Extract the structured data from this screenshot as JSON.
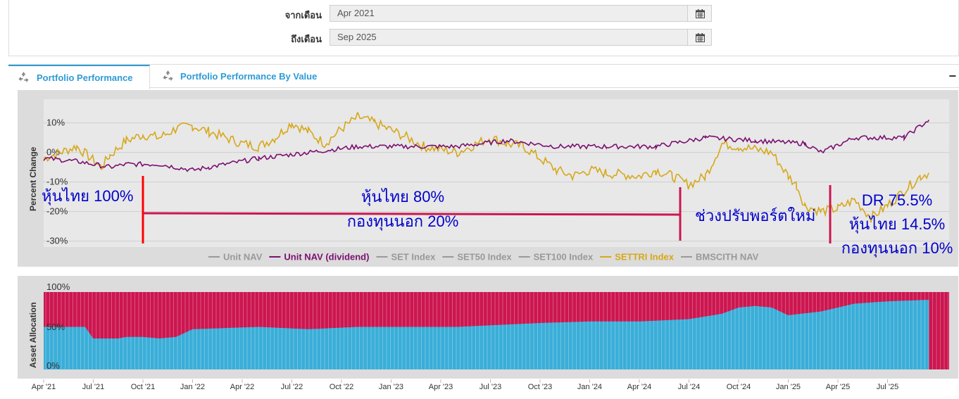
{
  "filters": {
    "from_label": "จากเดือน",
    "from_value": "Apr 2021",
    "to_label": "ถึงเดือน",
    "to_value": "Sep 2025",
    "calendar_icon": "calendar-icon"
  },
  "tabs": [
    {
      "label": "Portfolio Performance",
      "icon": "recycle-icon",
      "active": true
    },
    {
      "label": "Portfolio Performance By Value",
      "icon": "recycle-icon",
      "active": false
    }
  ],
  "collapse_label": "−",
  "colors": {
    "unit_nav_dividend": "#7b1070",
    "settri": "#d6a81a",
    "inactive_legend": "#999999",
    "alloc_red": "#cc1650",
    "alloc_blue": "#3aaed8",
    "annotation_red": "#cc1650",
    "annotation_blue": "#0000cc"
  },
  "chart_data": [
    {
      "type": "line",
      "ylabel": "Percent Change",
      "ylim": [
        -32,
        18
      ],
      "y_ticks": [
        10,
        0,
        -10,
        -20,
        -30
      ],
      "y_tick_labels": [
        "10%",
        "0%",
        "-10%",
        "-20%",
        "-30%"
      ],
      "x_ticks": [
        "Apr '21",
        "Jul '21",
        "Oct '21",
        "Jan '22",
        "Apr '22",
        "Jul '22",
        "Oct '22",
        "Jan '23",
        "Apr '23",
        "Jul '23",
        "Oct '23",
        "Jan '24",
        "Apr '24",
        "Jul '24",
        "Oct '24",
        "Jan '25",
        "Apr '25",
        "Jul '25"
      ],
      "legend": [
        {
          "name": "Unit NAV",
          "active": false
        },
        {
          "name": "Unit NAV (dividend)",
          "active": true
        },
        {
          "name": "SET Index",
          "active": false
        },
        {
          "name": "SET50 Index",
          "active": false
        },
        {
          "name": "SET100 Index",
          "active": false
        },
        {
          "name": "SETTRI Index",
          "active": true
        },
        {
          "name": "BMSCITH NAV",
          "active": false
        }
      ],
      "legend_placement": "bottom",
      "series": [
        {
          "name": "Unit NAV (dividend)",
          "x_months": [
            0,
            2,
            4,
            5,
            7,
            9,
            10,
            13,
            16,
            19,
            22,
            25,
            28,
            31,
            34,
            37,
            40,
            43,
            46,
            47,
            49,
            52,
            53.5
          ],
          "values": [
            -2,
            -3,
            -5,
            -4,
            -4,
            -6,
            -5,
            -2,
            0,
            2,
            2,
            2,
            4,
            2,
            2,
            2,
            5,
            4,
            3,
            0,
            5,
            5,
            11
          ]
        },
        {
          "name": "SETTRI Index",
          "x_months": [
            0,
            1,
            2,
            3.5,
            4,
            5,
            6,
            7,
            8,
            9,
            10,
            12,
            13,
            14,
            15,
            16,
            17,
            18,
            19,
            20,
            22,
            23,
            25,
            27,
            28,
            29,
            31,
            32,
            33,
            34,
            36,
            37,
            38,
            39,
            40,
            41,
            42,
            44,
            45,
            45.5,
            46,
            47,
            48,
            49,
            50,
            51,
            52,
            53,
            53.5
          ],
          "values": [
            -2,
            0,
            2,
            -5,
            -1,
            4,
            6,
            5,
            8,
            9,
            7,
            3,
            2,
            5,
            10,
            7,
            3,
            8,
            12,
            10,
            5,
            2,
            0,
            5,
            3,
            2,
            -6,
            -8,
            -6,
            -7,
            -8,
            -6,
            -8,
            -11,
            -8,
            3,
            2,
            0,
            -8,
            -11,
            -18,
            -20,
            -19,
            -16,
            -22,
            -18,
            -13,
            -8,
            -7
          ]
        }
      ],
      "annotations": [
        "หุ้นไทย 100%",
        "หุ้นไทย 80%",
        "กองทุนนอก 20%",
        "ช่วงปรับพอร์ตใหม่",
        "DR 75.5%",
        "หุ้นไทย 14.5%",
        "กองทุนนอก 10%"
      ]
    },
    {
      "type": "area",
      "ylabel": "Asset Allocation",
      "ylim": [
        0,
        100
      ],
      "y_tick_labels": [
        "100%",
        "50%",
        "0%"
      ],
      "series": [
        {
          "name": "lower",
          "x_months": [
            0,
            2.5,
            3,
            4.5,
            5,
            6,
            7,
            8,
            9,
            13,
            16,
            19,
            22,
            25,
            27,
            30,
            33,
            36,
            39,
            41,
            42,
            43,
            44,
            45,
            47,
            49,
            51,
            53.5
          ],
          "values": [
            55,
            55,
            40,
            40,
            42,
            42,
            40,
            42,
            52,
            55,
            52,
            55,
            55,
            55,
            57,
            60,
            62,
            62,
            65,
            72,
            80,
            82,
            80,
            70,
            75,
            85,
            88,
            90
          ]
        }
      ]
    }
  ]
}
